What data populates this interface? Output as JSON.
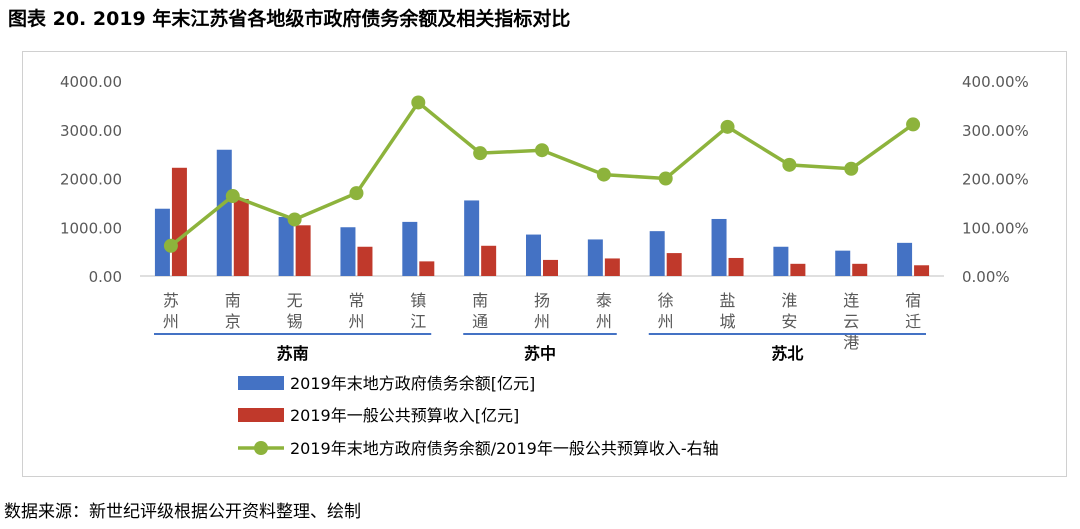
{
  "title": "图表 20. 2019 年末江苏省各地级市政府债务余额及相关指标对比",
  "source": "数据来源：新世纪评级根据公开资料整理、绘制",
  "chart_data": {
    "type": "bar",
    "categories": [
      "苏州",
      "南京",
      "无锡",
      "常州",
      "镇江",
      "南通",
      "扬州",
      "泰州",
      "徐州",
      "盐城",
      "淮安",
      "连云港",
      "宿迁"
    ],
    "regions": [
      {
        "name": "苏南",
        "start": 0,
        "end": 4
      },
      {
        "name": "苏中",
        "start": 5,
        "end": 7
      },
      {
        "name": "苏北",
        "start": 8,
        "end": 12
      }
    ],
    "series": [
      {
        "name": "2019年末地方政府债务余额[亿元]",
        "type": "bar",
        "axis": "left",
        "color": "#4472C4",
        "values": [
          1380,
          2590,
          1210,
          1000,
          1110,
          1550,
          850,
          750,
          920,
          1170,
          600,
          520,
          680
        ]
      },
      {
        "name": "2019年一般公共预算收入[亿元]",
        "type": "bar",
        "axis": "left",
        "color": "#C0392B",
        "values": [
          2220,
          1580,
          1040,
          600,
          300,
          620,
          330,
          360,
          470,
          370,
          250,
          250,
          220
        ]
      },
      {
        "name": "2019年末地方政府债务余额/2019年一般公共预算收入-右轴",
        "type": "line",
        "axis": "right",
        "color": "#8DB33C",
        "values": [
          62,
          164,
          116,
          170,
          356,
          252,
          258,
          208,
          200,
          306,
          228,
          220,
          311
        ]
      }
    ],
    "yleft": {
      "ticks": [
        "0.00",
        "1000.00",
        "2000.00",
        "3000.00",
        "4000.00"
      ],
      "ylim": [
        0,
        4000
      ]
    },
    "yright": {
      "ticks": [
        "0.00%",
        "100.00%",
        "200.00%",
        "300.00%",
        "400.00%"
      ],
      "ylim": [
        0,
        400
      ]
    },
    "legend_position": "bottom",
    "grid": false
  }
}
